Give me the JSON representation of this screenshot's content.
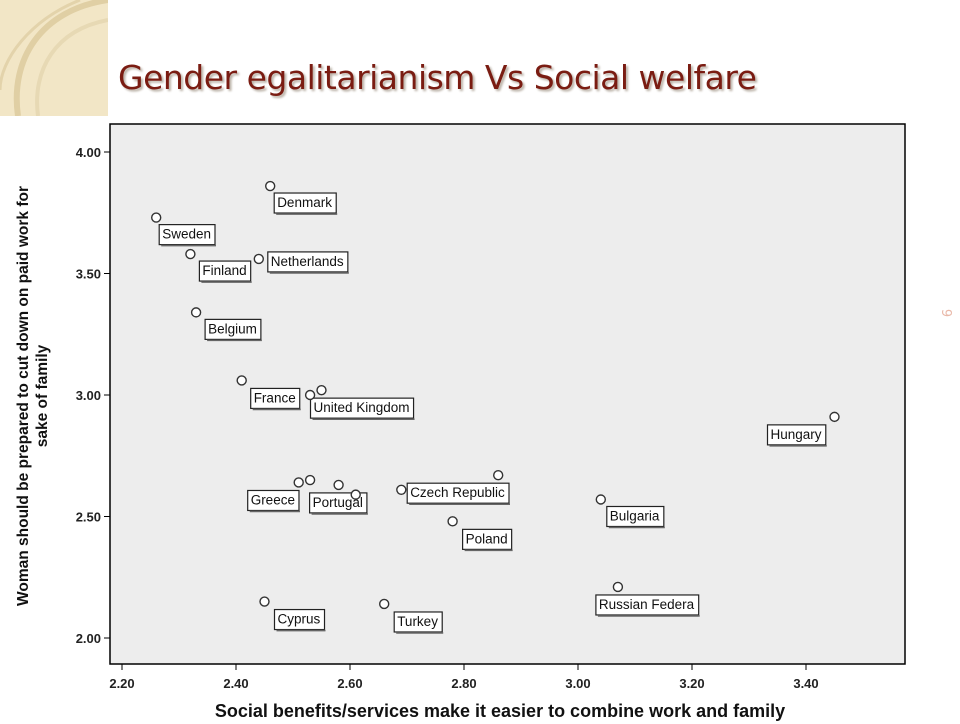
{
  "slide": {
    "title": "Gender egalitarianism Vs Social welfare",
    "number": "9"
  },
  "colors": {
    "title": "#7a1c12",
    "plot_background": "#ededed",
    "marker_stroke": "#333333",
    "corner_decoration": "#f2e6c6"
  },
  "chart_data": {
    "type": "scatter",
    "xlabel": "Social benefits/services make it easier to combine work and family",
    "ylabel": "Woman should be prepared to cut down on paid work for sake of family",
    "xlim": [
      2.2,
      3.58
    ],
    "ylim": [
      1.9,
      4.11
    ],
    "xticks": [
      2.2,
      2.4,
      2.6,
      2.8,
      3.0,
      3.2,
      3.4
    ],
    "xtick_labels": [
      "2.20",
      "2.40",
      "2.60",
      "2.80",
      "3.00",
      "3.20",
      "3.40"
    ],
    "yticks": [
      2.0,
      2.5,
      3.0,
      3.5,
      4.0
    ],
    "ytick_labels": [
      "2.00",
      "2.50",
      "3.00",
      "3.50",
      "4.00"
    ],
    "grid": false,
    "legend": "none",
    "points": [
      {
        "x": 2.46,
        "y": 3.86,
        "label": "Denmark"
      },
      {
        "x": 2.26,
        "y": 3.73,
        "label": "Sweden"
      },
      {
        "x": 2.32,
        "y": 3.58,
        "label": "Finland"
      },
      {
        "x": 2.44,
        "y": 3.56,
        "label": "Netherlands"
      },
      {
        "x": 2.33,
        "y": 3.34,
        "label": "Belgium"
      },
      {
        "x": 2.41,
        "y": 3.06,
        "label": "France"
      },
      {
        "x": 2.55,
        "y": 3.02,
        "label": "United Kingdom"
      },
      {
        "x": 2.53,
        "y": 3.0,
        "label": ""
      },
      {
        "x": 3.45,
        "y": 2.91,
        "label": "Hungary"
      },
      {
        "x": 2.86,
        "y": 2.67,
        "label": "Czech Republic"
      },
      {
        "x": 2.69,
        "y": 2.61,
        "label": ""
      },
      {
        "x": 2.53,
        "y": 2.65,
        "label": ""
      },
      {
        "x": 2.51,
        "y": 2.64,
        "label": "Greece"
      },
      {
        "x": 2.58,
        "y": 2.63,
        "label": "Portugal"
      },
      {
        "x": 2.61,
        "y": 2.59,
        "label": ""
      },
      {
        "x": 3.04,
        "y": 2.57,
        "label": "Bulgaria"
      },
      {
        "x": 2.78,
        "y": 2.48,
        "label": "Poland"
      },
      {
        "x": 3.07,
        "y": 2.21,
        "label": "Russian Federa"
      },
      {
        "x": 2.45,
        "y": 2.15,
        "label": "Cyprus"
      },
      {
        "x": 2.66,
        "y": 2.14,
        "label": "Turkey"
      }
    ]
  }
}
